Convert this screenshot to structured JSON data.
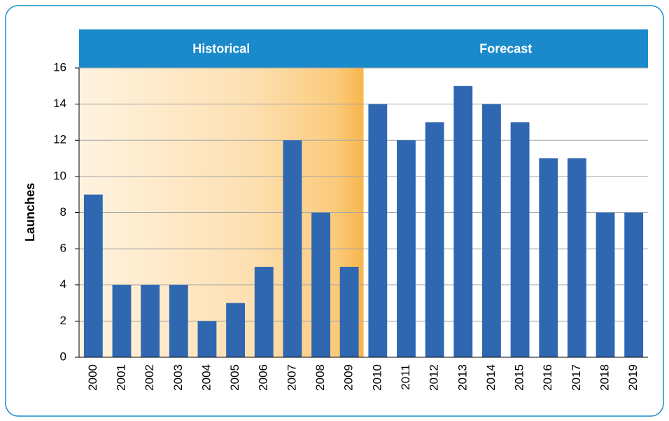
{
  "chart_data": {
    "type": "bar",
    "ylabel": "Launches",
    "categories": [
      "2000",
      "2001",
      "2002",
      "2003",
      "2004",
      "2005",
      "2006",
      "2007",
      "2008",
      "2009",
      "2010",
      "2011",
      "2012",
      "2013",
      "2014",
      "2015",
      "2016",
      "2017",
      "2018",
      "2019"
    ],
    "values": [
      9,
      4,
      4,
      4,
      2,
      3,
      5,
      12,
      8,
      5,
      14,
      12,
      13,
      15,
      14,
      13,
      11,
      11,
      8,
      8
    ],
    "color": "#2f67b1",
    "ylim": [
      0,
      16
    ],
    "yticks": [
      0,
      2,
      4,
      6,
      8,
      10,
      12,
      14,
      16
    ],
    "grid": true,
    "regions": [
      {
        "label": "Historical",
        "from": "2000",
        "to": "2009"
      },
      {
        "label": "Forecast",
        "from": "2010",
        "to": "2019"
      }
    ],
    "region_color": "#1a8acb"
  }
}
